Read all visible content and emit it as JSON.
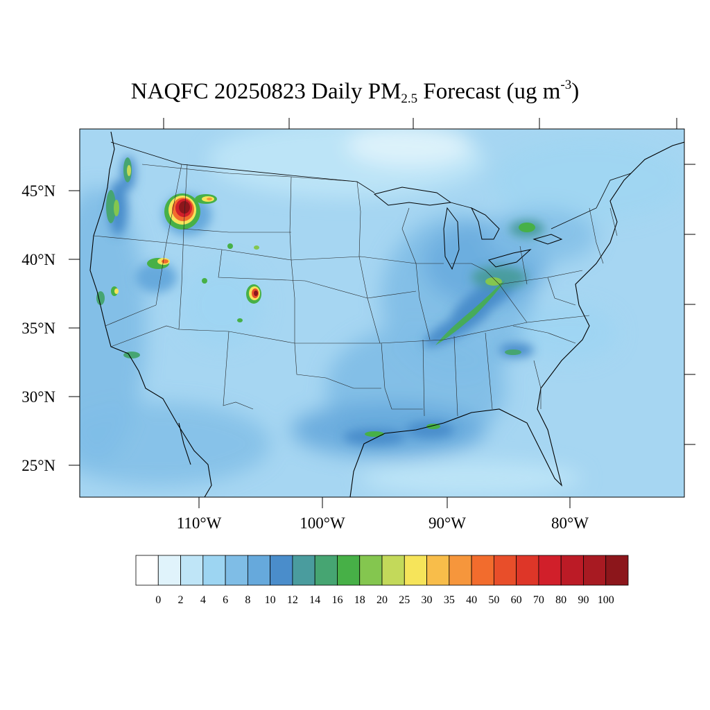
{
  "title": {
    "prefix": "NAQFC 20250823 Daily PM",
    "pm_subscript": "2.5",
    "middle": " Forecast (ug m",
    "exponent": "-3",
    "suffix": ")"
  },
  "map": {
    "projection": "Lambert Conformal (CONUS)",
    "lat_ticks": [
      "25°N",
      "30°N",
      "35°N",
      "40°N",
      "45°N"
    ],
    "lon_ticks": [
      "110°W",
      "100°W",
      "90°W",
      "80°W"
    ],
    "base_color": "#a6d6f2",
    "hotspots": [
      {
        "region": "Central Idaho",
        "level": "100"
      },
      {
        "region": "Southwest Montana",
        "level": "30"
      },
      {
        "region": "Southern Colorado",
        "level": "100"
      },
      {
        "region": "Northeast Nevada",
        "level": "35"
      },
      {
        "region": "Northern California",
        "level": "20"
      },
      {
        "region": "Washington Cascades",
        "level": "25"
      },
      {
        "region": "Oregon coast",
        "level": "25"
      },
      {
        "region": "Ohio Valley / Kentucky",
        "level": "18"
      },
      {
        "region": "Texas / Louisiana Gulf Coast",
        "level": "16"
      },
      {
        "region": "Southern Ontario",
        "level": "18"
      },
      {
        "region": "Southern California",
        "level": "14"
      }
    ]
  },
  "colorbar": {
    "labels": [
      "0",
      "2",
      "4",
      "6",
      "8",
      "10",
      "12",
      "14",
      "16",
      "18",
      "20",
      "25",
      "30",
      "35",
      "40",
      "50",
      "60",
      "70",
      "80",
      "90",
      "100"
    ],
    "colors": [
      "#ffffff",
      "#e0f3fb",
      "#bfe5f7",
      "#9dd5f2",
      "#7fbde6",
      "#66a9dc",
      "#4a8dcb",
      "#4a9c9e",
      "#46a572",
      "#47b047",
      "#84c64f",
      "#c3d95a",
      "#f6e45a",
      "#f8bd4a",
      "#f6963c",
      "#f26c2d",
      "#e84e2a",
      "#de3628",
      "#d11f2a",
      "#bc1b26",
      "#a81a22",
      "#8c161b"
    ]
  }
}
